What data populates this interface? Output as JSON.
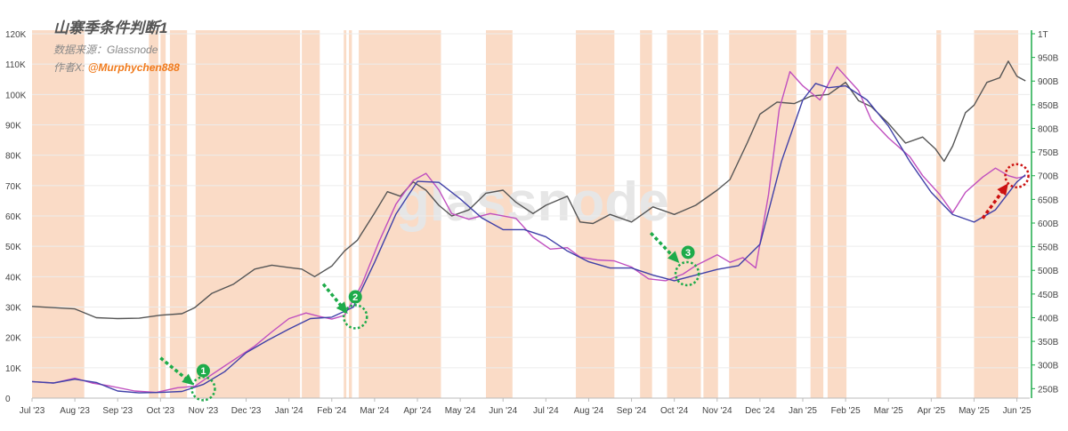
{
  "chart_data": {
    "type": "line",
    "title": "山寨季条件判断1",
    "source_label": "数据来源：Glassnode",
    "author_label": "作者X: ",
    "author_handle": "@Murphychen888",
    "watermark": "glassnode",
    "x_tick_labels": [
      "Jul '23",
      "Aug '23",
      "Sep '23",
      "Oct '23",
      "Nov '23",
      "Dec '23",
      "Jan '24",
      "Feb '24",
      "Mar '24",
      "Apr '24",
      "May '24",
      "Jun '24",
      "Jul '24",
      "Aug '24",
      "Sep '24",
      "Oct '24",
      "Nov '24",
      "Dec '24",
      "Jan '25",
      "Feb '25",
      "Mar '25",
      "Apr '25",
      "May '25",
      "Jun '25"
    ],
    "y_left_ticks": [
      "0",
      "10K",
      "20K",
      "30K",
      "40K",
      "50K",
      "60K",
      "70K",
      "80K",
      "90K",
      "100K",
      "110K",
      "120K"
    ],
    "y_right_ticks": [
      "250B",
      "300B",
      "350B",
      "400B",
      "450B",
      "500B",
      "550B",
      "600B",
      "650B",
      "700B",
      "750B",
      "800B",
      "850B",
      "900B",
      "950B",
      "1T"
    ],
    "y_left_range": [
      0,
      120000
    ],
    "y_right_range": [
      230,
      1000
    ],
    "x_range": [
      0,
      23.3
    ],
    "shaded_periods": [
      [
        0.0,
        1.22
      ],
      [
        2.73,
        2.95
      ],
      [
        3.0,
        3.12
      ],
      [
        3.22,
        3.62
      ],
      [
        3.82,
        6.26
      ],
      [
        6.3,
        6.72
      ],
      [
        7.28,
        7.34
      ],
      [
        7.4,
        7.47
      ],
      [
        7.63,
        9.55
      ],
      [
        10.6,
        11.22
      ],
      [
        12.7,
        13.6
      ],
      [
        14.2,
        14.48
      ],
      [
        14.83,
        15.62
      ],
      [
        15.68,
        16.02
      ],
      [
        16.28,
        17.85
      ],
      [
        18.18,
        18.48
      ],
      [
        18.58,
        19.02
      ],
      [
        21.12,
        21.23
      ],
      [
        22.0,
        23.03
      ]
    ],
    "series": [
      {
        "id": "price",
        "axis": "left",
        "color": "#555555",
        "x": [
          0,
          0.5,
          1.0,
          1.5,
          2.0,
          2.5,
          3.0,
          3.5,
          3.8,
          4.2,
          4.7,
          5.2,
          5.6,
          6.0,
          6.3,
          6.6,
          7.0,
          7.3,
          7.6,
          8.0,
          8.3,
          8.6,
          8.9,
          9.2,
          9.5,
          9.8,
          10.2,
          10.6,
          11.0,
          11.3,
          11.7,
          12.0,
          12.5,
          12.8,
          13.1,
          13.5,
          14.0,
          14.5,
          15.0,
          15.5,
          16.0,
          16.3,
          16.7,
          17.0,
          17.4,
          17.8,
          18.2,
          18.6,
          19.0,
          19.3,
          19.6,
          20.0,
          20.4,
          20.8,
          21.1,
          21.3,
          21.5,
          21.8,
          22.0,
          22.3,
          22.6,
          22.8,
          23.0,
          23.2
        ],
        "values": [
          30200,
          29800,
          29400,
          26500,
          26200,
          26300,
          27300,
          27800,
          29800,
          34500,
          37500,
          42500,
          43800,
          43000,
          42500,
          40000,
          43500,
          48500,
          52000,
          61000,
          68000,
          66500,
          71200,
          68500,
          63500,
          60000,
          62000,
          67500,
          68500,
          64500,
          60800,
          63500,
          66500,
          58000,
          57500,
          60500,
          58000,
          63000,
          60500,
          63500,
          68500,
          72000,
          84000,
          93500,
          97500,
          97000,
          99500,
          100000,
          104000,
          98000,
          96000,
          90500,
          84000,
          86000,
          82000,
          78000,
          83000,
          94000,
          96500,
          104000,
          105500,
          111000,
          106000,
          104500
        ]
      },
      {
        "id": "ma_fast",
        "axis": "right",
        "color": "#c04fbf",
        "x": [
          0,
          0.5,
          1.0,
          1.4,
          1.8,
          2.4,
          2.9,
          3.4,
          3.8,
          4.2,
          4.7,
          5.2,
          5.6,
          6.0,
          6.4,
          6.7,
          7.0,
          7.3,
          7.7,
          8.1,
          8.5,
          8.9,
          9.2,
          9.5,
          9.8,
          10.2,
          10.7,
          11.3,
          11.7,
          12.1,
          12.5,
          12.8,
          13.2,
          13.6,
          14.0,
          14.4,
          14.8,
          15.2,
          15.5,
          16.0,
          16.3,
          16.6,
          16.9,
          17.2,
          17.45,
          17.7,
          18.0,
          18.4,
          18.8,
          19.3,
          19.6,
          20.0,
          20.5,
          20.8,
          21.2,
          21.5,
          21.8,
          22.2,
          22.5,
          22.8,
          23.0,
          23.2
        ],
        "values": [
          265,
          262,
          272,
          262,
          256,
          245,
          242,
          252,
          255,
          280,
          310,
          340,
          370,
          398,
          410,
          403,
          397,
          405,
          470,
          560,
          640,
          690,
          705,
          670,
          620,
          608,
          620,
          610,
          570,
          545,
          548,
          528,
          522,
          520,
          507,
          482,
          478,
          492,
          510,
          533,
          517,
          527,
          505,
          660,
          840,
          920,
          890,
          860,
          930,
          880,
          818,
          780,
          740,
          700,
          660,
          622,
          665,
          697,
          716,
          700,
          695,
          699
        ]
      },
      {
        "id": "ma_slow",
        "axis": "right",
        "color": "#4040a8",
        "x": [
          0,
          0.5,
          1.0,
          1.5,
          2.0,
          2.5,
          3.0,
          3.5,
          4.0,
          4.5,
          5.0,
          5.5,
          6.0,
          6.5,
          7.0,
          7.5,
          8.0,
          8.5,
          9.0,
          9.5,
          10.0,
          10.5,
          11.0,
          11.5,
          12.0,
          12.5,
          13.0,
          13.5,
          14.0,
          14.5,
          15.0,
          15.5,
          16.0,
          16.5,
          17.0,
          17.5,
          18.0,
          18.3,
          18.6,
          19.0,
          19.5,
          20.0,
          20.5,
          21.0,
          21.5,
          22.0,
          22.5,
          23.0,
          23.2
        ],
        "values": [
          265,
          262,
          270,
          263,
          245,
          241,
          242,
          244,
          259,
          286,
          326,
          352,
          376,
          398,
          401,
          422,
          517,
          619,
          688,
          686,
          651,
          611,
          586,
          586,
          571,
          541,
          518,
          505,
          505,
          490,
          478,
          490,
          502,
          510,
          555,
          730,
          860,
          895,
          886,
          890,
          860,
          805,
          730,
          665,
          618,
          602,
          628,
          687,
          702
        ]
      }
    ],
    "annotations": [
      {
        "label": "1",
        "color": "#1eab4a",
        "circle_at": [
          4.0,
          250
        ],
        "badge_at": [
          4.0,
          288
        ],
        "arrow_from": [
          3.0,
          315
        ],
        "arrow_to": [
          3.72,
          262
        ]
      },
      {
        "label": "2",
        "color": "#1eab4a",
        "circle_at": [
          7.55,
          402
        ],
        "badge_at": [
          7.55,
          444
        ],
        "arrow_from": [
          6.8,
          471
        ],
        "arrow_to": [
          7.32,
          414
        ]
      },
      {
        "label": "3",
        "color": "#1eab4a",
        "circle_at": [
          15.3,
          493
        ],
        "badge_at": [
          15.32,
          538
        ],
        "arrow_from": [
          14.45,
          579
        ],
        "arrow_to": [
          15.06,
          521
        ]
      },
      {
        "label": "",
        "color": "#cc1111",
        "circle_at": [
          23.0,
          700
        ],
        "badge_at": null,
        "arrow_from": [
          22.2,
          610
        ],
        "arrow_to": [
          22.75,
          678
        ]
      }
    ]
  }
}
